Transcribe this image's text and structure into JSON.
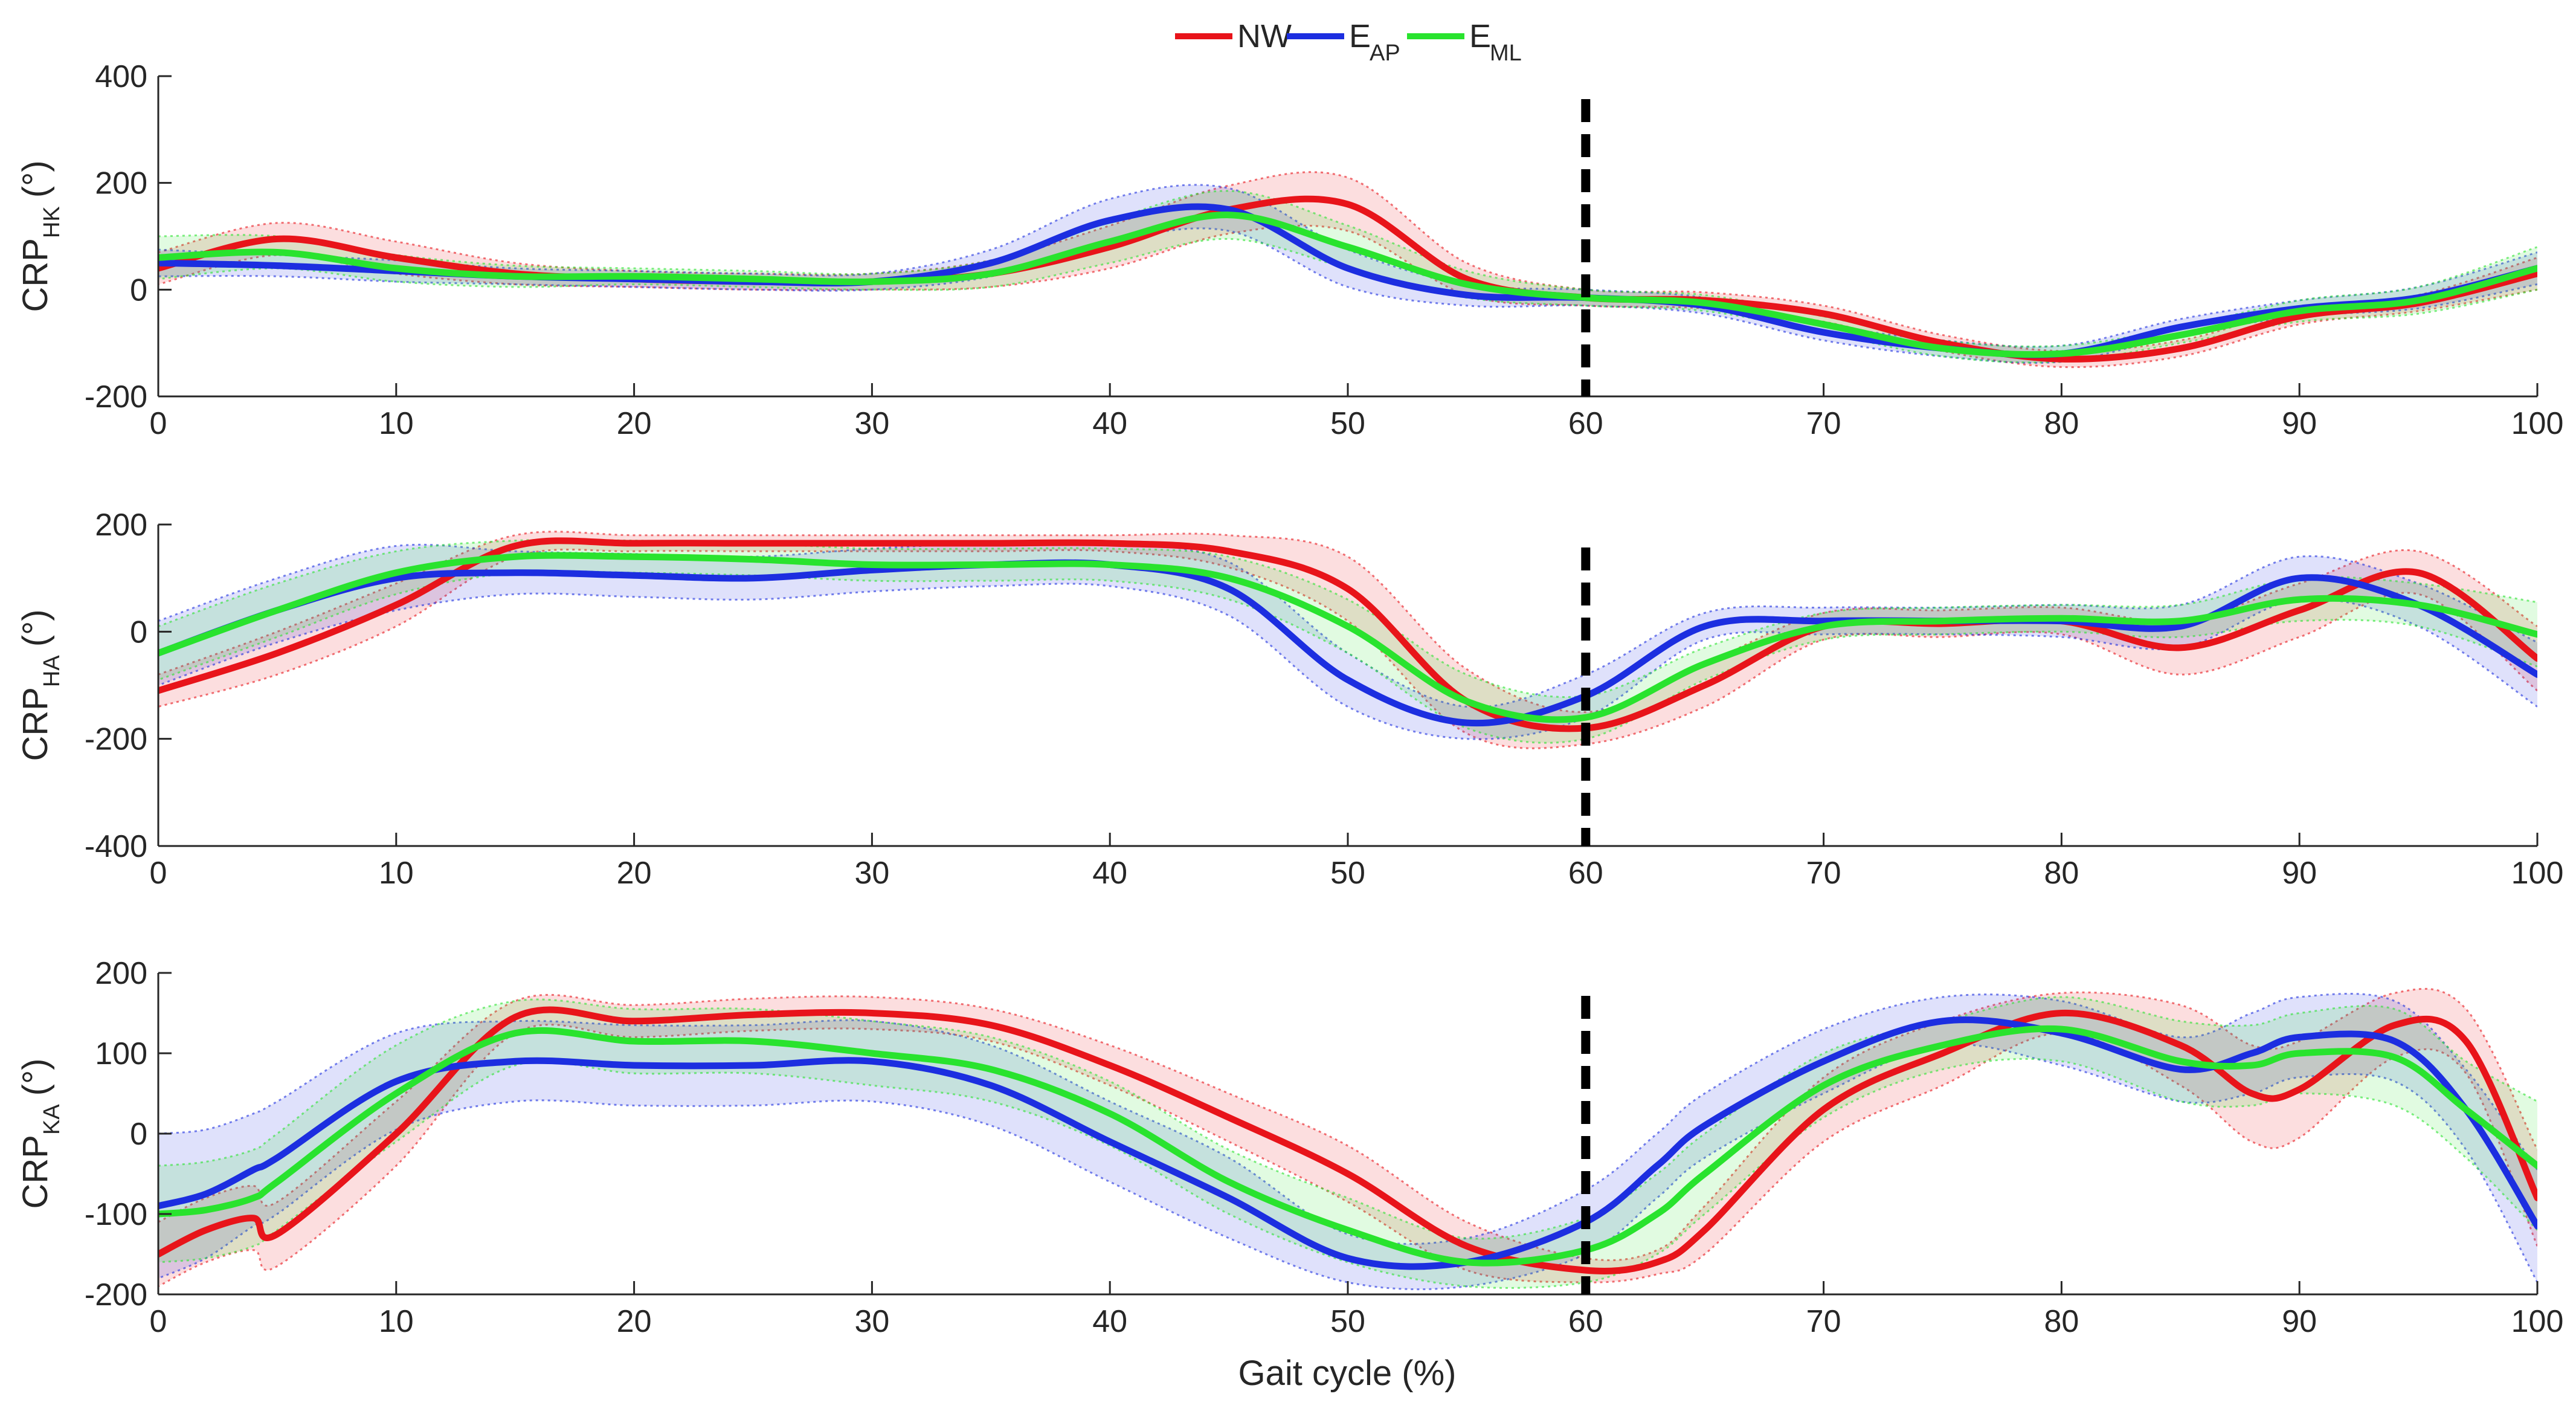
{
  "legend": [
    {
      "key": "NW",
      "label": "NW",
      "sub": "",
      "color": "#e8141a"
    },
    {
      "key": "EAP",
      "label": "E",
      "sub": "AP",
      "color": "#1c2ee0"
    },
    {
      "key": "EML",
      "label": "E",
      "sub": "ML",
      "color": "#29e32e"
    }
  ],
  "xlabel": "Gait cycle (%)",
  "chart_data": [
    {
      "type": "line",
      "ylabel_main": "CRP",
      "ylabel_sub": "HK",
      "ylabel_unit": "(°)",
      "xlim": [
        0,
        100
      ],
      "ylim": [
        -200,
        400
      ],
      "xticks": [
        0,
        10,
        20,
        30,
        40,
        50,
        60,
        70,
        80,
        90,
        100
      ],
      "yticks": [
        -200,
        0,
        200,
        400
      ],
      "vline_x": 60,
      "x": [
        0,
        5,
        10,
        15,
        20,
        25,
        30,
        35,
        40,
        45,
        50,
        55,
        60,
        65,
        70,
        75,
        80,
        85,
        90,
        95,
        100
      ],
      "series": [
        {
          "name": "NW",
          "values": [
            40,
            95,
            60,
            30,
            20,
            15,
            15,
            30,
            80,
            150,
            160,
            20,
            -15,
            -20,
            -45,
            -100,
            -130,
            -110,
            -50,
            -25,
            30
          ],
          "band": [
            30,
            30,
            30,
            20,
            15,
            15,
            15,
            25,
            40,
            45,
            50,
            30,
            15,
            15,
            15,
            15,
            15,
            15,
            15,
            15,
            30
          ]
        },
        {
          "name": "EAP",
          "values": [
            50,
            45,
            35,
            25,
            20,
            15,
            15,
            50,
            130,
            150,
            40,
            -10,
            -15,
            -30,
            -80,
            -110,
            -120,
            -70,
            -35,
            -15,
            40
          ],
          "band": [
            25,
            20,
            20,
            15,
            15,
            15,
            15,
            25,
            40,
            40,
            35,
            20,
            15,
            15,
            15,
            15,
            15,
            15,
            15,
            20,
            30
          ]
        },
        {
          "name": "EML",
          "values": [
            60,
            70,
            40,
            25,
            25,
            20,
            15,
            30,
            90,
            140,
            80,
            10,
            -15,
            -25,
            -65,
            -110,
            -120,
            -85,
            -40,
            -20,
            40
          ],
          "band": [
            40,
            30,
            25,
            20,
            15,
            15,
            15,
            25,
            40,
            45,
            40,
            25,
            15,
            15,
            15,
            15,
            15,
            15,
            20,
            25,
            40
          ]
        }
      ]
    },
    {
      "type": "line",
      "ylabel_main": "CRP",
      "ylabel_sub": "HA",
      "ylabel_unit": "(°)",
      "xlim": [
        0,
        100
      ],
      "ylim": [
        -400,
        200
      ],
      "xticks": [
        0,
        10,
        20,
        30,
        40,
        50,
        60,
        70,
        80,
        90,
        100
      ],
      "yticks": [
        -400,
        -200,
        0,
        200
      ],
      "vline_x": 60,
      "x": [
        0,
        5,
        10,
        15,
        20,
        25,
        30,
        35,
        40,
        45,
        50,
        55,
        60,
        65,
        70,
        75,
        80,
        85,
        90,
        95,
        100
      ],
      "series": [
        {
          "name": "NW",
          "values": [
            -110,
            -40,
            50,
            160,
            165,
            165,
            165,
            165,
            165,
            150,
            80,
            -130,
            -180,
            -100,
            10,
            15,
            20,
            -30,
            40,
            110,
            -50
          ],
          "band": [
            30,
            40,
            40,
            20,
            15,
            15,
            15,
            15,
            15,
            30,
            60,
            60,
            30,
            40,
            25,
            25,
            25,
            50,
            50,
            40,
            60
          ]
        },
        {
          "name": "EAP",
          "values": [
            -40,
            40,
            100,
            110,
            105,
            100,
            115,
            125,
            125,
            80,
            -90,
            -170,
            -120,
            10,
            20,
            20,
            20,
            10,
            100,
            50,
            -80
          ],
          "band": [
            60,
            60,
            60,
            40,
            40,
            40,
            40,
            40,
            40,
            50,
            50,
            30,
            40,
            25,
            25,
            25,
            30,
            40,
            40,
            40,
            60
          ]
        },
        {
          "name": "EML",
          "values": [
            -40,
            40,
            110,
            140,
            140,
            135,
            125,
            125,
            125,
            100,
            10,
            -130,
            -160,
            -60,
            10,
            20,
            25,
            20,
            60,
            50,
            -5
          ],
          "band": [
            50,
            50,
            40,
            30,
            30,
            30,
            30,
            30,
            30,
            40,
            50,
            50,
            40,
            30,
            25,
            25,
            25,
            30,
            40,
            40,
            60
          ]
        }
      ]
    },
    {
      "type": "line",
      "ylabel_main": "CRP",
      "ylabel_sub": "KA",
      "ylabel_unit": "(°)",
      "xlim": [
        0,
        100
      ],
      "ylim": [
        -200,
        200
      ],
      "xticks": [
        0,
        10,
        20,
        30,
        40,
        50,
        60,
        70,
        80,
        90,
        100
      ],
      "yticks": [
        -200,
        -100,
        0,
        100,
        200
      ],
      "vline_x": 60,
      "x": [
        0,
        2,
        4,
        5,
        10,
        15,
        20,
        25,
        30,
        35,
        40,
        45,
        50,
        55,
        60,
        63,
        65,
        70,
        75,
        80,
        85,
        88,
        90,
        94,
        97,
        100
      ],
      "series": [
        {
          "name": "NW",
          "values": [
            -150,
            -120,
            -105,
            -125,
            0,
            145,
            140,
            148,
            150,
            135,
            85,
            20,
            -50,
            -140,
            -170,
            -160,
            -120,
            30,
            100,
            150,
            110,
            50,
            55,
            135,
            115,
            -80
          ],
          "band": [
            40,
            40,
            40,
            40,
            40,
            20,
            20,
            20,
            20,
            20,
            25,
            30,
            35,
            30,
            15,
            15,
            30,
            40,
            40,
            25,
            50,
            60,
            60,
            40,
            40,
            60
          ]
        },
        {
          "name": "EAP",
          "values": [
            -90,
            -75,
            -45,
            -30,
            65,
            90,
            85,
            85,
            90,
            60,
            -10,
            -80,
            -155,
            -160,
            -110,
            -40,
            10,
            90,
            140,
            125,
            80,
            100,
            120,
            115,
            30,
            -115
          ],
          "band": [
            90,
            80,
            70,
            70,
            60,
            50,
            50,
            50,
            50,
            50,
            50,
            50,
            30,
            30,
            40,
            40,
            40,
            40,
            30,
            40,
            40,
            50,
            50,
            50,
            50,
            70
          ]
        },
        {
          "name": "EML",
          "values": [
            -100,
            -95,
            -80,
            -60,
            50,
            125,
            115,
            115,
            100,
            80,
            25,
            -60,
            -120,
            -160,
            -145,
            -100,
            -50,
            60,
            110,
            130,
            90,
            85,
            100,
            95,
            30,
            -40
          ],
          "band": [
            60,
            60,
            60,
            60,
            60,
            40,
            40,
            40,
            40,
            40,
            40,
            40,
            40,
            30,
            40,
            50,
            50,
            40,
            30,
            40,
            50,
            50,
            50,
            60,
            60,
            80
          ]
        }
      ]
    }
  ]
}
